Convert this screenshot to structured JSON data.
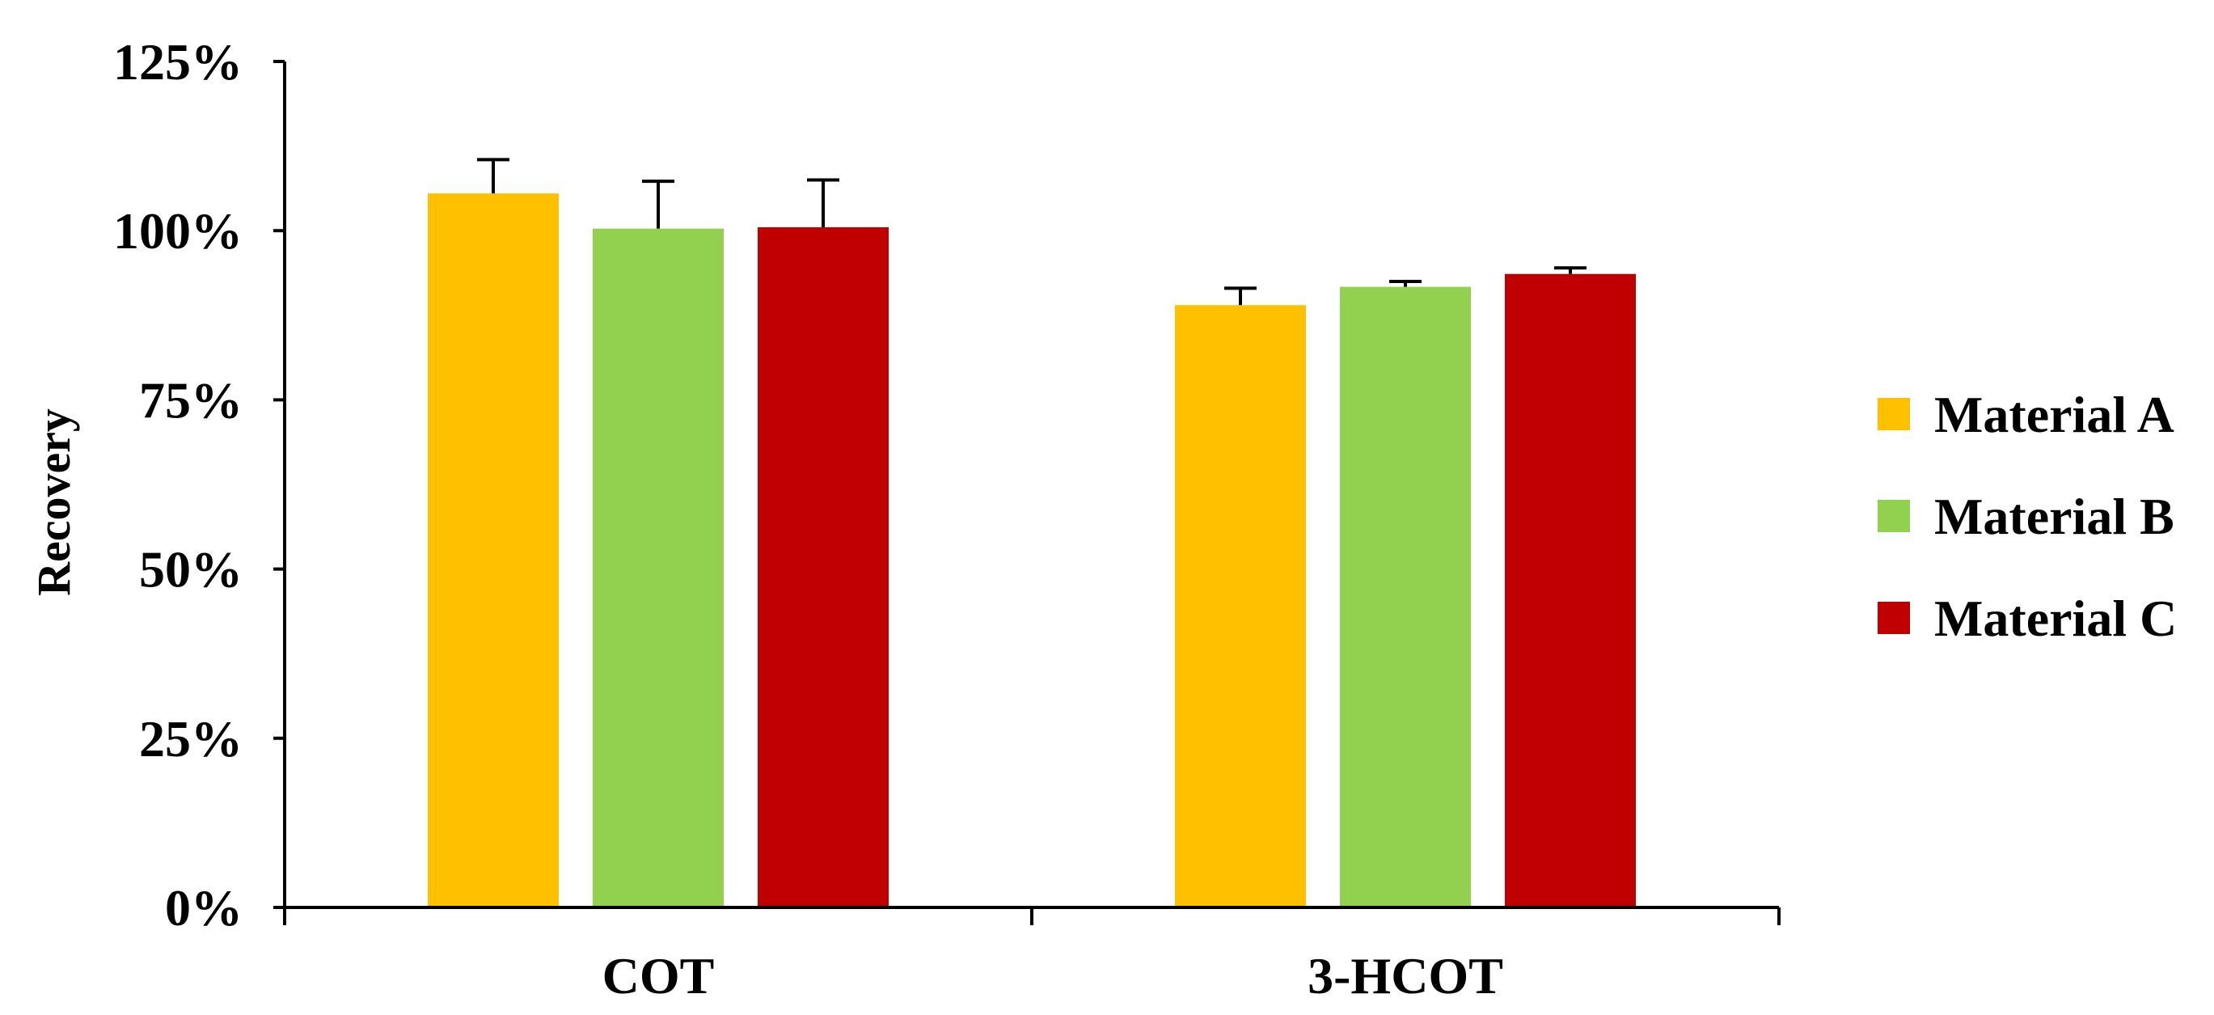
{
  "chart_data": {
    "type": "bar",
    "ylabel": "Recovery",
    "xlabel": "",
    "ylim": [
      0,
      1.25
    ],
    "yticks": [
      {
        "value": 0,
        "label": "0%"
      },
      {
        "value": 0.25,
        "label": "25%"
      },
      {
        "value": 0.5,
        "label": "50%"
      },
      {
        "value": 0.75,
        "label": "75%"
      },
      {
        "value": 1.0,
        "label": "100%"
      },
      {
        "value": 1.25,
        "label": "125%"
      }
    ],
    "categories": [
      "COT",
      "3-HCOT"
    ],
    "series": [
      {
        "name": "Material A",
        "color": "#FFC000",
        "values": [
          1.055,
          0.89
        ],
        "errors": [
          0.05,
          0.025
        ]
      },
      {
        "name": "Material B",
        "color": "#92D050",
        "values": [
          1.003,
          0.917
        ],
        "errors": [
          0.07,
          0.008
        ]
      },
      {
        "name": "Material C",
        "color": "#C00000",
        "values": [
          1.005,
          0.936
        ],
        "errors": [
          0.07,
          0.009
        ]
      }
    ],
    "grid": false,
    "legend_position": "right"
  }
}
